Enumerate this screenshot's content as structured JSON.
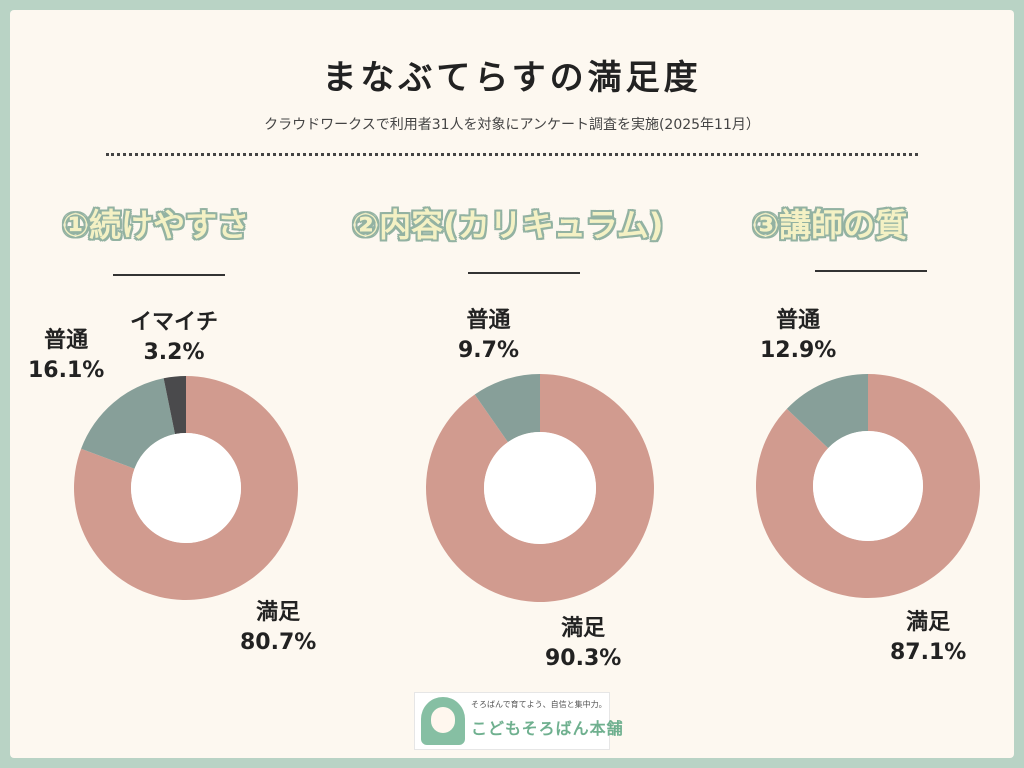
{
  "title": "まなぶてらすの満足度",
  "subtitle": "クラウドワークスで利用者31人を対象にアンケート調査を実施(2025年11月）",
  "colors": {
    "satisfied": "#d19b8f",
    "neutral": "#879f99",
    "dissatisfied": "#4a4a4c",
    "background": "#fdf8f0",
    "frame": "#b9d3c5",
    "heading_fill": "#f4f1c4",
    "heading_outline": "#93b2a2"
  },
  "chart_data": [
    {
      "type": "pie",
      "title": "①続けやすさ",
      "slices": [
        {
          "name": "満足",
          "value": 80.7,
          "label": "80.7%"
        },
        {
          "name": "普通",
          "value": 16.1,
          "label": "16.1%"
        },
        {
          "name": "イマイチ",
          "value": 3.2,
          "label": "3.2%"
        }
      ]
    },
    {
      "type": "pie",
      "title": "②内容(カリキュラム)",
      "slices": [
        {
          "name": "満足",
          "value": 90.3,
          "label": "90.3%"
        },
        {
          "name": "普通",
          "value": 9.7,
          "label": "9.7%"
        }
      ]
    },
    {
      "type": "pie",
      "title": "③講師の質",
      "slices": [
        {
          "name": "満足",
          "value": 87.1,
          "label": "87.1%"
        },
        {
          "name": "普通",
          "value": 12.9,
          "label": "12.9%"
        }
      ]
    }
  ],
  "logo": {
    "slogan": "そろばんで育てよう、自信と集中力。",
    "brand": "こどもそろばん本舗"
  }
}
